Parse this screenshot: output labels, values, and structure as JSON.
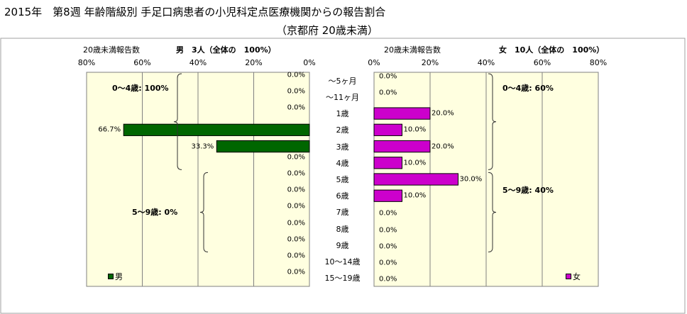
{
  "chart_data": {
    "type": "bar",
    "title": "2015年　第8週 年齢階級別 手足口病患者の小児科定点医療機関からの報告割合",
    "subtitle": "（京都府 20歳未満）",
    "categories": [
      "～5ヶ月",
      "～11ヶ月",
      "1歳",
      "2歳",
      "3歳",
      "4歳",
      "5歳",
      "6歳",
      "7歳",
      "8歳",
      "9歳",
      "10～14歳",
      "15～19歳"
    ],
    "xlim": [
      0,
      80
    ],
    "ticks": [
      "0%",
      "20%",
      "40%",
      "60%",
      "80%"
    ],
    "legend_position": "bottom-left (male), bottom-right (female)",
    "left_panel": {
      "axis_header": "20歳未満報告数",
      "header_total": "男　3人（全体の　100%）",
      "series_name": "男",
      "color": "#006600",
      "values": [
        0,
        0,
        0,
        66.7,
        33.3,
        0,
        0,
        0,
        0,
        0,
        0,
        0,
        0
      ],
      "labels": [
        "0.0%",
        "0.0%",
        "0.0%",
        "66.7%",
        "33.3%",
        "0.0%",
        "0.0%",
        "0.0%",
        "0.0%",
        "0.0%",
        "0.0%",
        "0.0%",
        "0.0%"
      ],
      "groups": [
        {
          "label": "0～4歳: 100%",
          "from": 0,
          "to": 5
        },
        {
          "label": "5～9歳: 0%",
          "from": 6,
          "to": 10
        }
      ]
    },
    "right_panel": {
      "axis_header": "20歳未満報告数",
      "header_total": "女　10人（全体の　100%）",
      "series_name": "女",
      "color": "#CC00CC",
      "values": [
        0,
        0,
        20,
        10,
        20,
        10,
        30,
        10,
        0,
        0,
        0,
        0,
        0
      ],
      "labels": [
        "0.0%",
        "0.0%",
        "20.0%",
        "10.0%",
        "20.0%",
        "10.0%",
        "30.0%",
        "10.0%",
        "0.0%",
        "0.0%",
        "0.0%",
        "0.0%",
        "0.0%"
      ],
      "groups": [
        {
          "label": "0～4歳: 60%",
          "from": 0,
          "to": 5
        },
        {
          "label": "5～9歳: 40%",
          "from": 6,
          "to": 10
        }
      ]
    }
  }
}
